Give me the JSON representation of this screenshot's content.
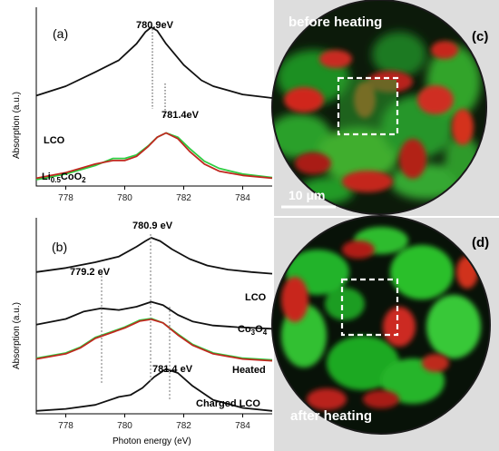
{
  "figure": {
    "panel_a": {
      "panel_label": "(a)",
      "ylabel": "Absorption (a.u.)",
      "peak_labels": [
        "780.9eV",
        "781.4eV"
      ],
      "curve_labels": {
        "lco": "LCO",
        "lico_prefix": "Li",
        "lico_sub1": "0.5",
        "lico_mid": "CoO",
        "lico_sub2": "2"
      }
    },
    "panel_b": {
      "panel_label": "(b)",
      "ylabel": "Absorption (a.u.)",
      "xlabel": "Photon energy (eV)",
      "peak_labels": [
        "780.9 eV",
        "779.2 eV",
        "781.4 eV"
      ],
      "curve_labels": {
        "lco": "LCO",
        "co3o4_prefix": "Co",
        "co3o4_sub1": "3",
        "co3o4_mid": "O",
        "co3o4_sub2": "4",
        "heated": "Heated",
        "charged": "Charged LCO"
      }
    },
    "panel_c": {
      "panel_label": "(c)",
      "caption": "before heating",
      "scale": "10 μm"
    },
    "panel_d": {
      "panel_label": "(d)",
      "caption": "after heating"
    }
  },
  "colors": {
    "black_curve": "#111111",
    "green_curve": "#2ecc40",
    "red_curve": "#c0281f"
  },
  "chart_data": [
    {
      "type": "line",
      "panel": "a",
      "xlabel": "",
      "ylabel": "Absorption (a.u.)",
      "xlim": [
        777,
        785
      ],
      "xticks": [
        778,
        780,
        782,
        784
      ],
      "grid": false,
      "series": [
        {
          "name": "LCO",
          "color": "#111111",
          "x": [
            777,
            778,
            779,
            779.8,
            780.4,
            780.7,
            780.9,
            781.1,
            781.4,
            782,
            782.6,
            783,
            784,
            785
          ],
          "y": [
            0.42,
            0.5,
            0.62,
            0.72,
            0.86,
            0.96,
            1.0,
            0.97,
            0.86,
            0.68,
            0.55,
            0.5,
            0.43,
            0.4
          ]
        },
        {
          "color": "#2ecc40",
          "x": [
            777,
            778,
            779,
            779.6,
            780,
            780.4,
            780.8,
            781.1,
            781.4,
            781.8,
            782.2,
            782.7,
            783.2,
            784,
            785
          ],
          "y": [
            0.0,
            0.08,
            0.2,
            0.3,
            0.3,
            0.35,
            0.48,
            0.6,
            0.66,
            0.6,
            0.44,
            0.26,
            0.16,
            0.08,
            0.03
          ]
        },
        {
          "color": "#c0281f",
          "x": [
            777,
            778,
            779,
            779.6,
            780,
            780.4,
            780.8,
            781.1,
            781.4,
            781.8,
            782.2,
            782.7,
            783.2,
            784,
            785
          ],
          "y": [
            0.02,
            0.1,
            0.22,
            0.27,
            0.27,
            0.33,
            0.47,
            0.6,
            0.66,
            0.58,
            0.4,
            0.22,
            0.12,
            0.06,
            0.02
          ]
        }
      ]
    },
    {
      "type": "line",
      "panel": "b",
      "xlabel": "Photon energy (eV)",
      "ylabel": "Absorption (a.u.)",
      "xlim": [
        777,
        785
      ],
      "xticks": [
        778,
        780,
        782,
        784
      ],
      "grid": false,
      "series": [
        {
          "name": "LCO",
          "color": "#111111",
          "x": [
            777,
            778,
            779,
            779.8,
            780.4,
            780.7,
            780.9,
            781.2,
            781.6,
            782.2,
            782.8,
            783.5,
            784.3,
            785
          ],
          "y": [
            0.58,
            0.63,
            0.7,
            0.77,
            0.89,
            0.96,
            1.0,
            0.96,
            0.86,
            0.74,
            0.66,
            0.61,
            0.58,
            0.56
          ]
        },
        {
          "name": "Co3O4",
          "color": "#111111",
          "x": [
            777,
            778,
            778.6,
            779.2,
            779.8,
            780.4,
            780.9,
            781.3,
            781.8,
            782.3,
            783,
            783.8,
            785
          ],
          "y": [
            0.38,
            0.45,
            0.54,
            0.58,
            0.56,
            0.6,
            0.66,
            0.62,
            0.5,
            0.42,
            0.37,
            0.35,
            0.33
          ]
        },
        {
          "name": "Heated",
          "color": "#2ecc40",
          "x": [
            777,
            778,
            778.5,
            779,
            779.5,
            780,
            780.5,
            780.9,
            781.3,
            781.8,
            782.3,
            783,
            784,
            785
          ],
          "y": [
            0.14,
            0.2,
            0.27,
            0.38,
            0.44,
            0.5,
            0.58,
            0.6,
            0.55,
            0.42,
            0.3,
            0.2,
            0.14,
            0.12
          ]
        },
        {
          "color": "#c0281f",
          "x": [
            777,
            778,
            778.5,
            779,
            779.5,
            780,
            780.5,
            780.9,
            781.3,
            781.8,
            782.3,
            783,
            784,
            785
          ],
          "y": [
            0.13,
            0.19,
            0.26,
            0.37,
            0.43,
            0.49,
            0.57,
            0.59,
            0.55,
            0.41,
            0.29,
            0.19,
            0.13,
            0.11
          ]
        },
        {
          "name": "Charged LCO",
          "color": "#111111",
          "x": [
            777,
            778,
            779,
            779.8,
            780.2,
            780.6,
            781,
            781.4,
            781.8,
            782.3,
            783,
            784,
            785
          ],
          "y": [
            0.02,
            0.04,
            0.08,
            0.16,
            0.18,
            0.25,
            0.36,
            0.44,
            0.4,
            0.27,
            0.13,
            0.05,
            0.02
          ]
        }
      ]
    }
  ]
}
